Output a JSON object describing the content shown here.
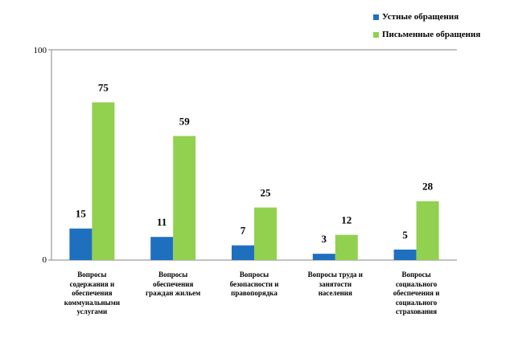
{
  "chart_data": {
    "type": "bar",
    "title": "",
    "xlabel": "",
    "ylabel": "",
    "ylim": [
      0,
      100
    ],
    "y_ticks": [
      "0",
      "100"
    ],
    "grid": false,
    "legend_position": "top-right",
    "categories": [
      "Вопросы содержания и обеспечения коммунальными услугами",
      "Вопросы обеспечения граждан жильем",
      "Вопросы безопасности и правопорядка",
      "Вопросы труда и занятости населения",
      "Вопросы социального обеспечения и социального страхования"
    ],
    "category_lines": [
      [
        "Вопросы",
        "содержания и",
        "обеспечения",
        "коммунальными",
        "услугами"
      ],
      [
        "Вопросы",
        "обеспечения",
        "граждан жильем"
      ],
      [
        "Вопросы",
        "безопасности и",
        "правопорядка"
      ],
      [
        "Вопросы труда и",
        "занятости",
        "населения"
      ],
      [
        "Вопросы",
        "социального",
        "обеспечения и",
        "социального",
        "страхования"
      ]
    ],
    "series": [
      {
        "name": "Устные обращения",
        "color": "#1F6FBF",
        "values": [
          15,
          11,
          7,
          3,
          5
        ]
      },
      {
        "name": "Письменные обращения",
        "color": "#92D050",
        "values": [
          75,
          59,
          25,
          12,
          28
        ]
      }
    ]
  }
}
